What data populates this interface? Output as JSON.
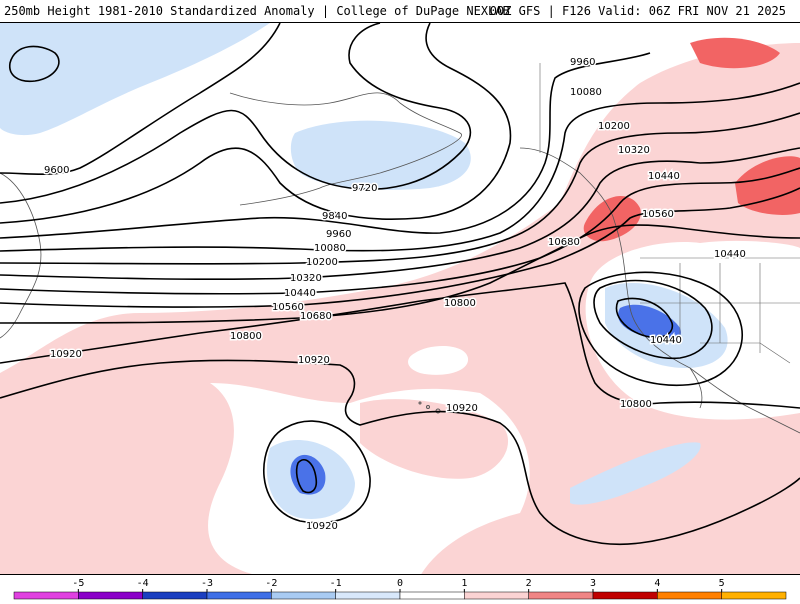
{
  "header": {
    "title": "250mb Height 1981-2010 Standardized Anomaly | College of DuPage NEXLAB",
    "run_info": "00Z GFS | F126 Valid: 06Z FRI NOV 21 2025"
  },
  "contour_labels": [
    "9600",
    "9720",
    "9840",
    "9960",
    "10080",
    "10200",
    "10320",
    "10440",
    "10560",
    "10680",
    "10800",
    "10920",
    "9960",
    "10080",
    "10200",
    "10320",
    "10440",
    "10560",
    "10680",
    "10800",
    "10440",
    "10440",
    "10800",
    "10920",
    "10920",
    "10920"
  ],
  "legend": {
    "ticks": [
      "-5",
      "-4",
      "-3",
      "-2",
      "-1",
      "0",
      "1",
      "2",
      "3",
      "4",
      "5"
    ],
    "colors": [
      "#e040e0",
      "#8a00c8",
      "#1b3fc0",
      "#3f6fe6",
      "#a9cbf2",
      "#d8e8fb",
      "#ffffff",
      "#fbd3d3",
      "#f08585",
      "#c00000",
      "#ff8000",
      "#ffb000"
    ]
  },
  "anomaly_colors": {
    "light_blue": "#cfe3f9",
    "blue": "#4a72e8",
    "dark_blue": "#2d4fc7",
    "light_pink": "#fbd4d4",
    "red": "#f26464"
  }
}
